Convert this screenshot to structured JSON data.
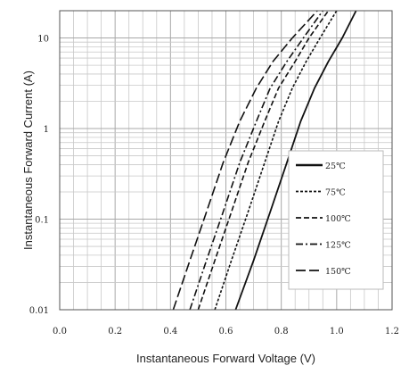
{
  "chart_data": {
    "type": "line",
    "title": "",
    "xlabel": "Instantaneous Forward Voltage (V)",
    "ylabel": "Instantaneous Forward Current (A)",
    "xlim": [
      0.0,
      1.2
    ],
    "ylim": [
      0.01,
      20
    ],
    "yscale": "log",
    "x_ticks": [
      "0.0",
      "0.2",
      "0.4",
      "0.6",
      "0.8",
      "1.0",
      "1.2"
    ],
    "y_ticks": [
      "0.01",
      "0.1",
      "1",
      "10"
    ],
    "grid": true,
    "legend_position": "bottom-right",
    "series": [
      {
        "name": "25℃",
        "style": "solid",
        "x": [
          0.635,
          0.7,
          0.76,
          0.82,
          0.87,
          0.92,
          0.97,
          1.02,
          1.07
        ],
        "y": [
          0.01,
          0.035,
          0.12,
          0.42,
          1.2,
          2.8,
          5.5,
          10,
          20
        ]
      },
      {
        "name": "75℃",
        "style": "dotted",
        "x": [
          0.56,
          0.62,
          0.68,
          0.74,
          0.79,
          0.84,
          0.89,
          0.94,
          1.0
        ],
        "y": [
          0.01,
          0.035,
          0.12,
          0.42,
          1.2,
          2.8,
          5.5,
          10,
          20
        ]
      },
      {
        "name": "100℃",
        "style": "dashed",
        "x": [
          0.5,
          0.56,
          0.62,
          0.68,
          0.74,
          0.79,
          0.85,
          0.9,
          0.97
        ],
        "y": [
          0.01,
          0.035,
          0.12,
          0.42,
          1.2,
          2.8,
          5.5,
          10,
          20
        ]
      },
      {
        "name": "125℃",
        "style": "dashdot",
        "x": [
          0.47,
          0.53,
          0.59,
          0.65,
          0.71,
          0.76,
          0.82,
          0.88,
          0.95
        ],
        "y": [
          0.01,
          0.035,
          0.12,
          0.42,
          1.2,
          2.8,
          5.5,
          10,
          20
        ]
      },
      {
        "name": "150℃",
        "style": "longdash",
        "x": [
          0.41,
          0.47,
          0.53,
          0.59,
          0.65,
          0.71,
          0.77,
          0.84,
          0.93
        ],
        "y": [
          0.01,
          0.035,
          0.12,
          0.42,
          1.2,
          2.8,
          5.5,
          10,
          20
        ]
      }
    ],
    "colors": {
      "line": "#111111",
      "grid": "#a8a8a8",
      "grid_minor": "#c8c8c8",
      "frame": "#555555"
    }
  }
}
